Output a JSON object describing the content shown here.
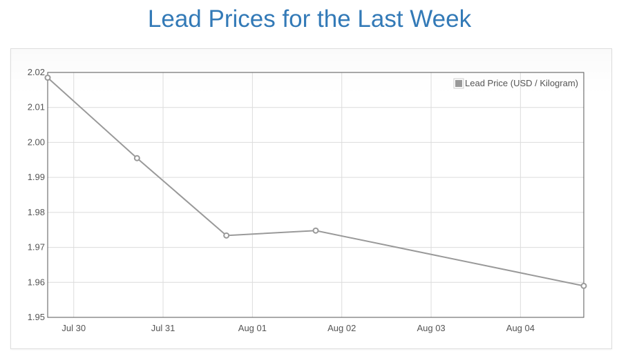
{
  "page": {
    "title": "Lead Prices for the Last Week"
  },
  "chart_data": {
    "type": "line",
    "title": "Lead Prices for the Last Week",
    "xlabel": "",
    "ylabel": "",
    "x_ticks": [
      "Jul 30",
      "Jul 31",
      "Aug 01",
      "Aug 02",
      "Aug 03",
      "Aug 04"
    ],
    "y_ticks": [
      "1.95",
      "1.96",
      "1.97",
      "1.98",
      "1.99",
      "2.00",
      "2.01",
      "2.02"
    ],
    "ylim": [
      1.95,
      2.02
    ],
    "xlim": [
      "2024-07-29 17:00",
      "2024-08-04 17:00"
    ],
    "grid": true,
    "legend_position": "top-right",
    "series": [
      {
        "name": "Lead Price (USD / Kilogram)",
        "color": "#999999",
        "points": [
          {
            "x": "2024-07-29 17:00",
            "y": 2.0185
          },
          {
            "x": "2024-07-30 17:00",
            "y": 1.9955
          },
          {
            "x": "2024-07-31 17:00",
            "y": 1.9734
          },
          {
            "x": "2024-08-01 17:00",
            "y": 1.9748
          },
          {
            "x": "2024-08-04 17:00",
            "y": 1.959
          }
        ]
      }
    ]
  }
}
